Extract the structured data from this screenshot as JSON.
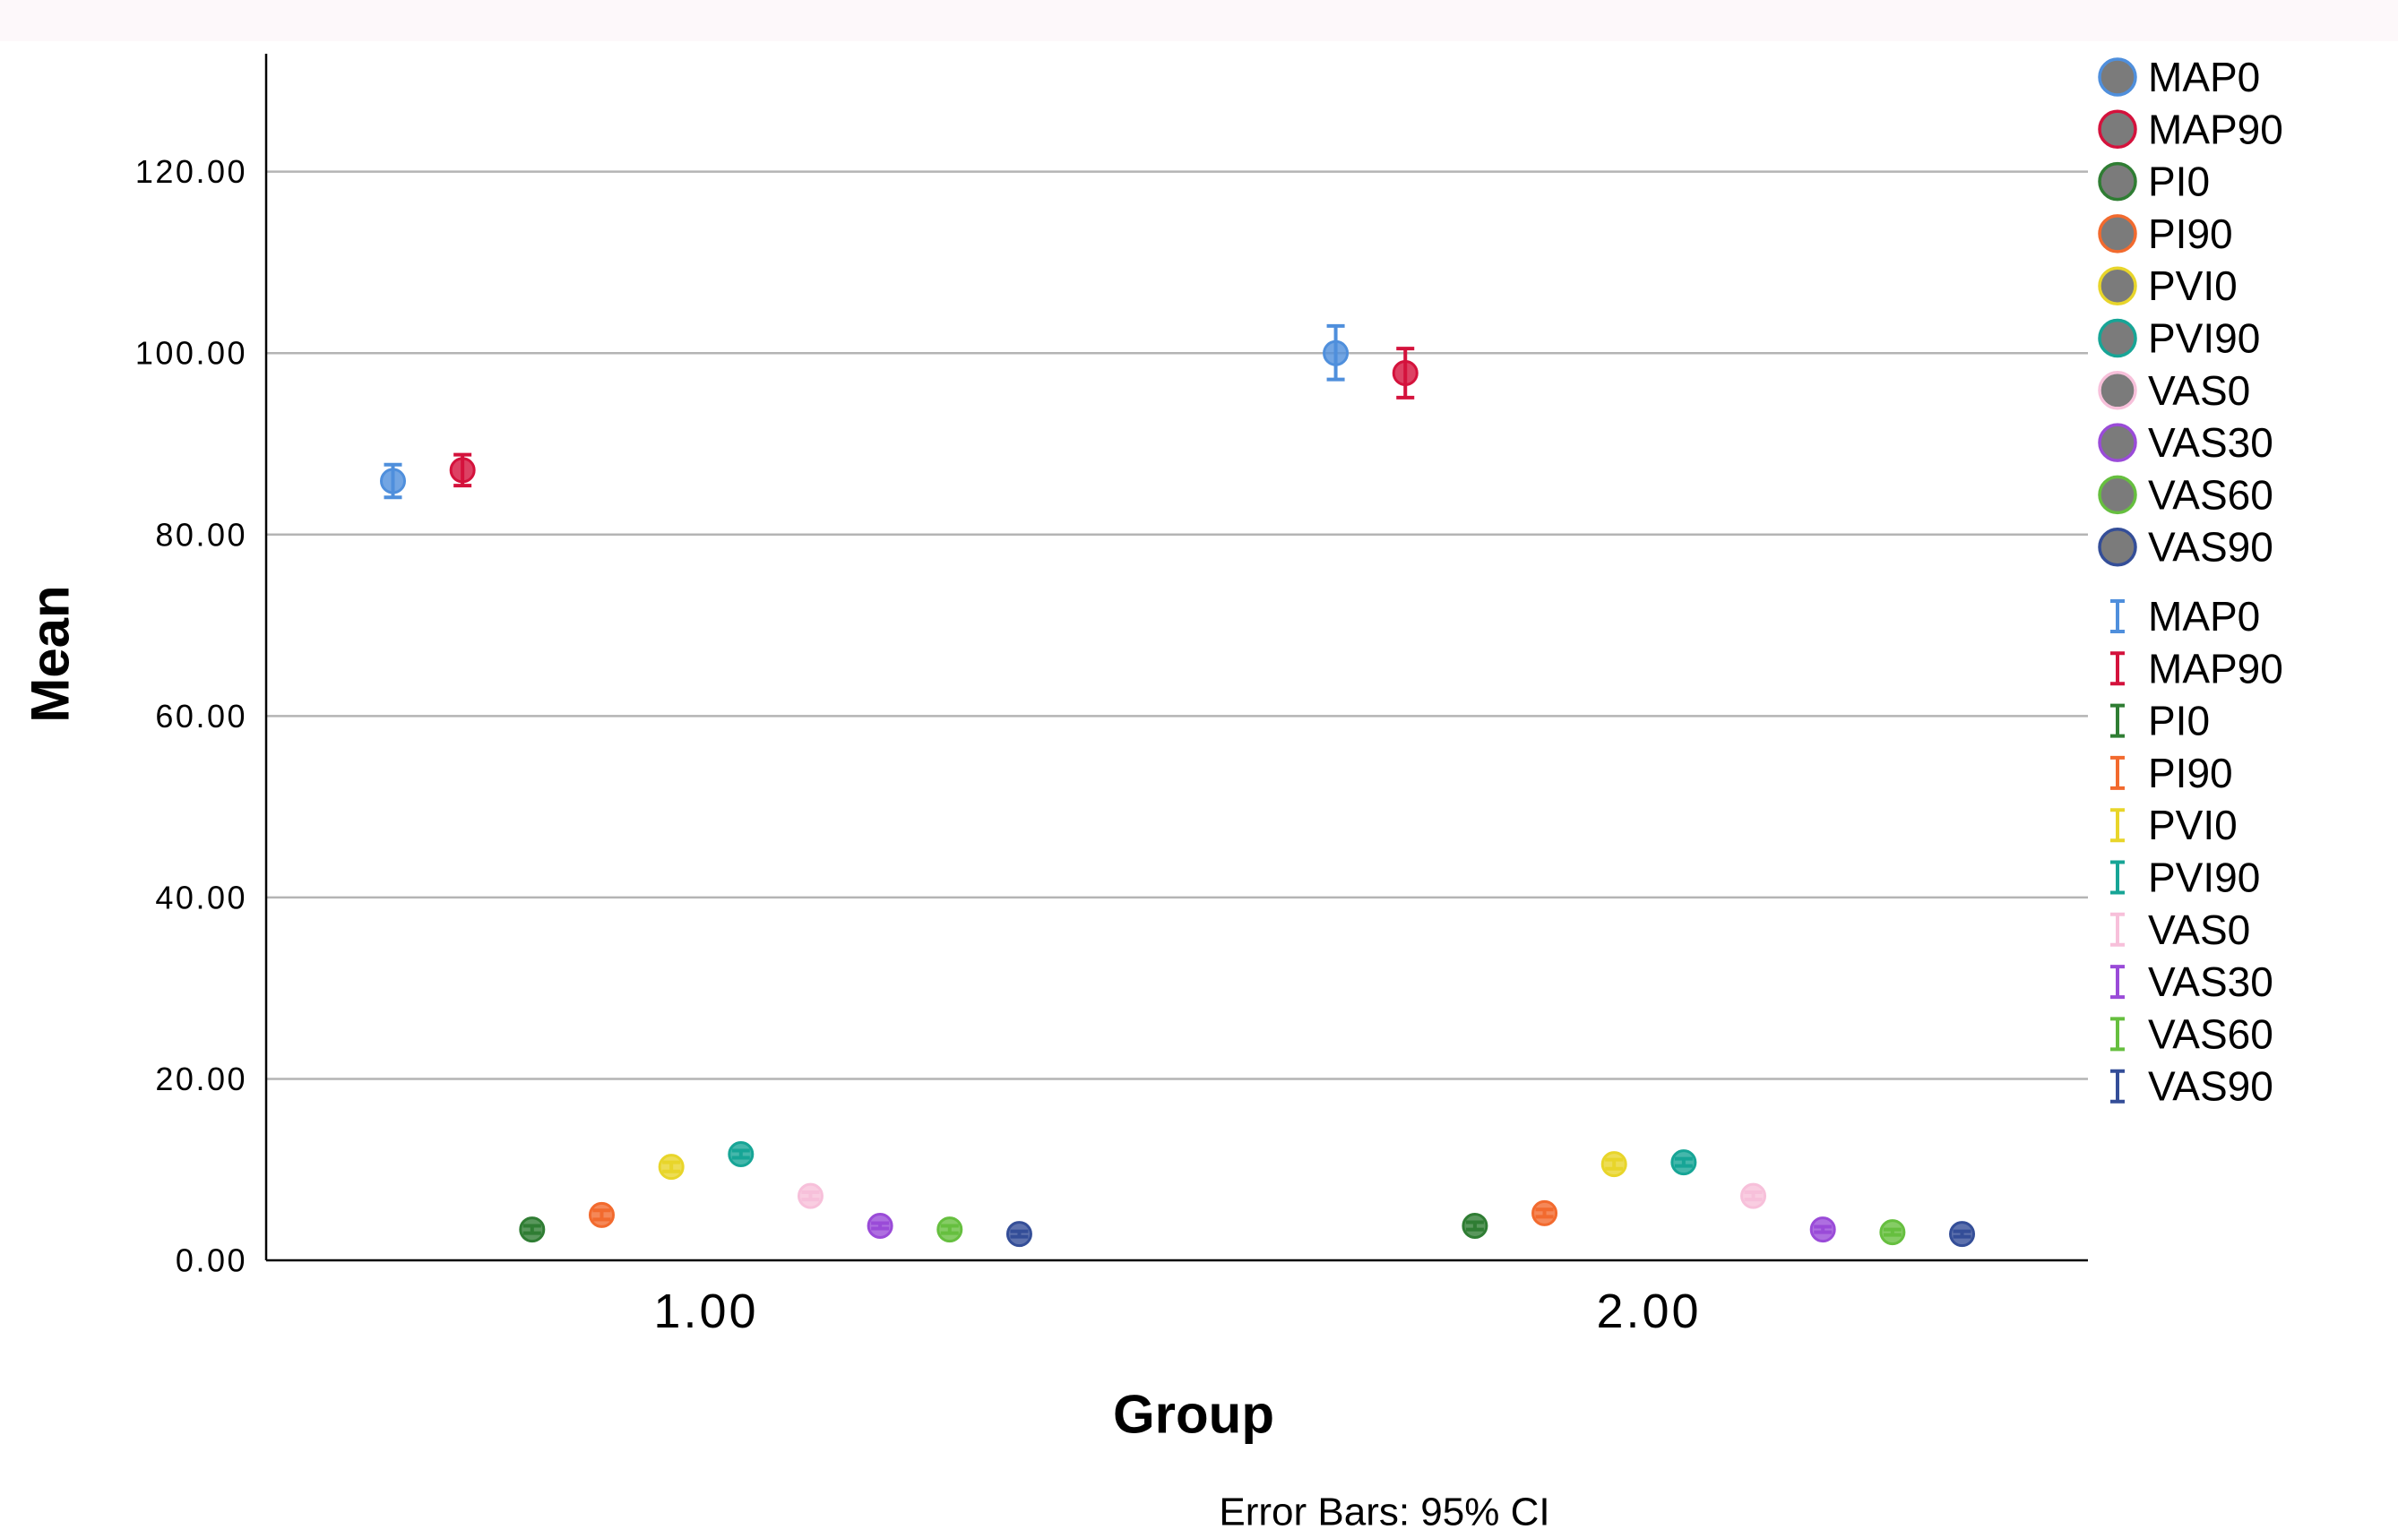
{
  "chart_data": {
    "type": "scatter",
    "xlabel": "Group",
    "ylabel": "Mean",
    "footnote": "Error Bars: 95% CI",
    "categories": [
      "1.00",
      "2.00"
    ],
    "y_tick_labels": [
      "0.00",
      "20.00",
      "40.00",
      "60.00",
      "80.00",
      "100.00",
      "120.00"
    ],
    "ylim": [
      0,
      133
    ],
    "grid": true,
    "legend": {
      "position": "right"
    },
    "series": [
      {
        "name": "MAP0",
        "color": "#4f8fdc",
        "values": [
          85.9,
          100.0
        ],
        "ci_lower": [
          84.1,
          97.1
        ],
        "ci_upper": [
          87.7,
          103.0
        ]
      },
      {
        "name": "MAP90",
        "color": "#d4123c",
        "values": [
          87.1,
          97.8
        ],
        "ci_lower": [
          85.4,
          95.1
        ],
        "ci_upper": [
          88.8,
          100.5
        ]
      },
      {
        "name": "PI0",
        "color": "#2f7d33",
        "values": [
          3.4,
          3.8
        ],
        "ci_lower": [
          3.0,
          3.4
        ],
        "ci_upper": [
          3.8,
          4.2
        ]
      },
      {
        "name": "PI90",
        "color": "#f26a2e",
        "values": [
          5.0,
          5.2
        ],
        "ci_lower": [
          4.5,
          4.8
        ],
        "ci_upper": [
          5.5,
          5.6
        ]
      },
      {
        "name": "PVI0",
        "color": "#e8d52a",
        "values": [
          10.3,
          10.6
        ],
        "ci_lower": [
          9.8,
          10.1
        ],
        "ci_upper": [
          10.8,
          11.1
        ]
      },
      {
        "name": "PVI90",
        "color": "#17a596",
        "values": [
          11.7,
          10.8
        ],
        "ci_lower": [
          11.3,
          10.4
        ],
        "ci_upper": [
          12.1,
          11.2
        ]
      },
      {
        "name": "VAS0",
        "color": "#f7c0da",
        "values": [
          7.1,
          7.1
        ],
        "ci_lower": [
          6.7,
          6.7
        ],
        "ci_upper": [
          7.5,
          7.5
        ]
      },
      {
        "name": "VAS30",
        "color": "#9a4bd8",
        "values": [
          3.8,
          3.4
        ],
        "ci_lower": [
          3.5,
          3.1
        ],
        "ci_upper": [
          4.1,
          3.7
        ]
      },
      {
        "name": "VAS60",
        "color": "#66bf3f",
        "values": [
          3.4,
          3.1
        ],
        "ci_lower": [
          3.0,
          2.8
        ],
        "ci_upper": [
          3.8,
          3.4
        ]
      },
      {
        "name": "VAS90",
        "color": "#344e98",
        "values": [
          2.9,
          2.9
        ],
        "ci_lower": [
          2.6,
          2.6
        ],
        "ci_upper": [
          3.2,
          3.2
        ]
      }
    ]
  }
}
